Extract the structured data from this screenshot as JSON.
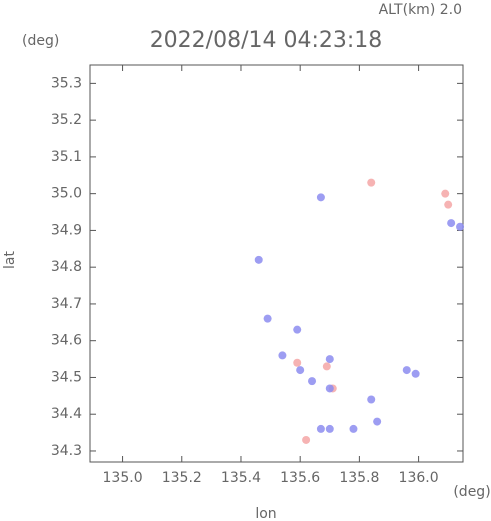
{
  "chart_data": {
    "type": "scatter",
    "title": "2022/08/14 04:23:18",
    "subtitle": "ALT(km) 2.0",
    "x_label": "lon",
    "y_label": "lat",
    "x_unit": "(deg)",
    "y_unit": "(deg)",
    "xlim": [
      134.89,
      136.15
    ],
    "ylim": [
      34.27,
      35.35
    ],
    "xticks": [
      {
        "value": 135.0,
        "label": "135.0"
      },
      135.2,
      135.4,
      135.6,
      135.8,
      {
        "value": 136.0,
        "label": "136.0"
      }
    ],
    "yticks": [
      34.3,
      34.4,
      34.5,
      34.6,
      34.7,
      34.8,
      34.9,
      {
        "value": 35.0,
        "label": "35.0"
      },
      35.1,
      35.2,
      35.3
    ],
    "series": [
      {
        "color": "#f4a6a6",
        "x": [
          136.09,
          136.1,
          135.84,
          135.59,
          135.69,
          135.62,
          135.71
        ],
        "values": [
          35.0,
          34.97,
          35.03,
          34.54,
          34.53,
          34.33,
          34.47
        ]
      },
      {
        "color": "#8c8cf0",
        "x": [
          136.11,
          136.14,
          135.67,
          135.46,
          135.59,
          135.54,
          135.6,
          135.64,
          135.7,
          135.67,
          135.7,
          135.78,
          135.86,
          135.84,
          135.96,
          135.99,
          135.49,
          135.7
        ],
        "values": [
          34.92,
          34.91,
          34.99,
          34.82,
          34.63,
          34.56,
          34.52,
          34.49,
          34.47,
          34.36,
          34.36,
          34.36,
          34.38,
          34.44,
          34.52,
          34.51,
          34.66,
          34.55
        ]
      }
    ]
  }
}
